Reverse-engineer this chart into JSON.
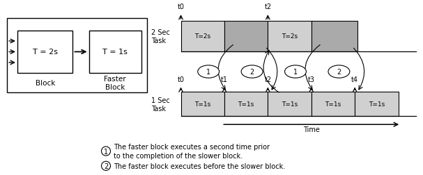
{
  "bg_color": "#ffffff",
  "annotations": [
    {
      "num": "1",
      "text": "The faster block executes a second time prior\nto the completion of the slower block."
    },
    {
      "num": "2",
      "text": "The faster block executes before the slower block."
    }
  ],
  "colors": {
    "gray_block": "#aaaaaa",
    "light_gray": "#d0d0d0",
    "white_block": "#ffffff",
    "text": "#000000"
  },
  "timing": {
    "top_t_labels": [
      "t0",
      "t2"
    ],
    "bottom_t_labels": [
      "t0",
      "t1",
      "t2",
      "t3",
      "t4"
    ],
    "circle_nums": [
      "1",
      "2",
      "1",
      "2"
    ],
    "circle_ts": [
      1.0,
      2.0,
      3.0,
      4.0
    ]
  }
}
